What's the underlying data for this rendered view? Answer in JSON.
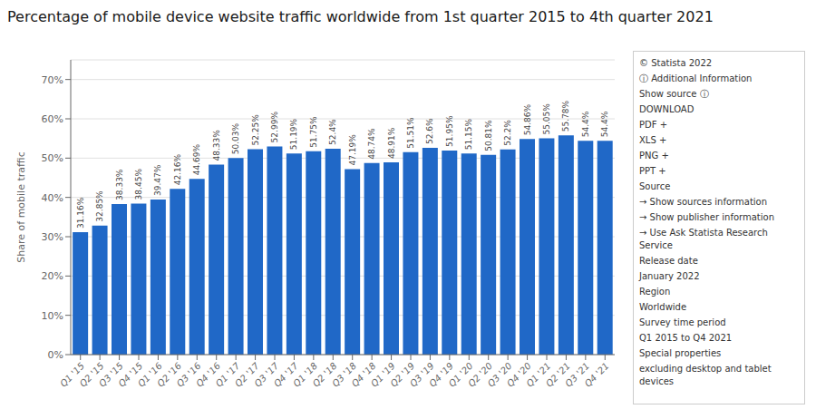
{
  "chart_data": {
    "type": "bar",
    "title": "Percentage of mobile device website traffic worldwide from 1st quarter 2015 to 4th quarter 2021",
    "ylabel": "Share of mobile traffic",
    "categories": [
      "Q1 '15",
      "Q2 '15",
      "Q3 '15",
      "Q4 '15",
      "Q1 '16",
      "Q2 '16",
      "Q3 '16",
      "Q4 '16",
      "Q1 '17",
      "Q2 '17",
      "Q3 '17",
      "Q4 '17",
      "Q1 '18",
      "Q2 '18",
      "Q3 '18",
      "Q4 '18",
      "Q1 '19",
      "Q2 '19",
      "Q3 '19",
      "Q4 '19",
      "Q1 '20",
      "Q2 '20",
      "Q3 '20",
      "Q4 '20",
      "Q1 '21",
      "Q2 '21",
      "Q3 '21",
      "Q4 '21"
    ],
    "values": [
      31.16,
      32.85,
      38.33,
      38.45,
      39.47,
      42.16,
      44.69,
      48.33,
      50.03,
      52.25,
      52.99,
      51.19,
      51.75,
      52.4,
      47.19,
      48.74,
      48.91,
      51.51,
      52.6,
      51.95,
      51.15,
      50.81,
      52.2,
      54.86,
      55.05,
      55.78,
      54.4,
      54.4
    ],
    "value_labels": [
      "31.16%",
      "32.85%",
      "38.33%",
      "38.45%",
      "39.47%",
      "42.16%",
      "44.69%",
      "48.33%",
      "50.03%",
      "52.25%",
      "52.99%",
      "51.19%",
      "51.75%",
      "52.4%",
      "47.19%",
      "48.74%",
      "48.91%",
      "51.51%",
      "52.6%",
      "51.95%",
      "51.15%",
      "50.81%",
      "52.2%",
      "54.86%",
      "55.05%",
      "55.78%",
      "54.4%",
      "54.4%"
    ],
    "color": "#2068c7",
    "ylim": [
      0,
      75
    ],
    "yticks": [
      {
        "value": 0,
        "label": "0%"
      },
      {
        "value": 10,
        "label": "10%"
      },
      {
        "value": 20,
        "label": "20%"
      },
      {
        "value": 30,
        "label": "30%"
      },
      {
        "value": 40,
        "label": "40%"
      },
      {
        "value": 50,
        "label": "50%"
      },
      {
        "value": 60,
        "label": "60%"
      },
      {
        "value": 70,
        "label": "70%"
      }
    ],
    "grid": true,
    "data_labels": true,
    "annotations": [
      "© Statista 2022",
      "ⓘ Additional Information",
      "Show source ⓘ",
      "DOWNLOAD",
      "PDF +",
      "XLS +",
      "PNG +",
      "PPT +",
      "Source",
      "→ Show sources information",
      "→ Show publisher information",
      "→ Use Ask Statista Research Service",
      "Release date",
      "January 2022",
      "Region",
      "Worldwide",
      "Survey time period",
      "Q1 2015 to Q4 2021",
      "Special properties",
      "excluding desktop and tablet devices"
    ]
  }
}
